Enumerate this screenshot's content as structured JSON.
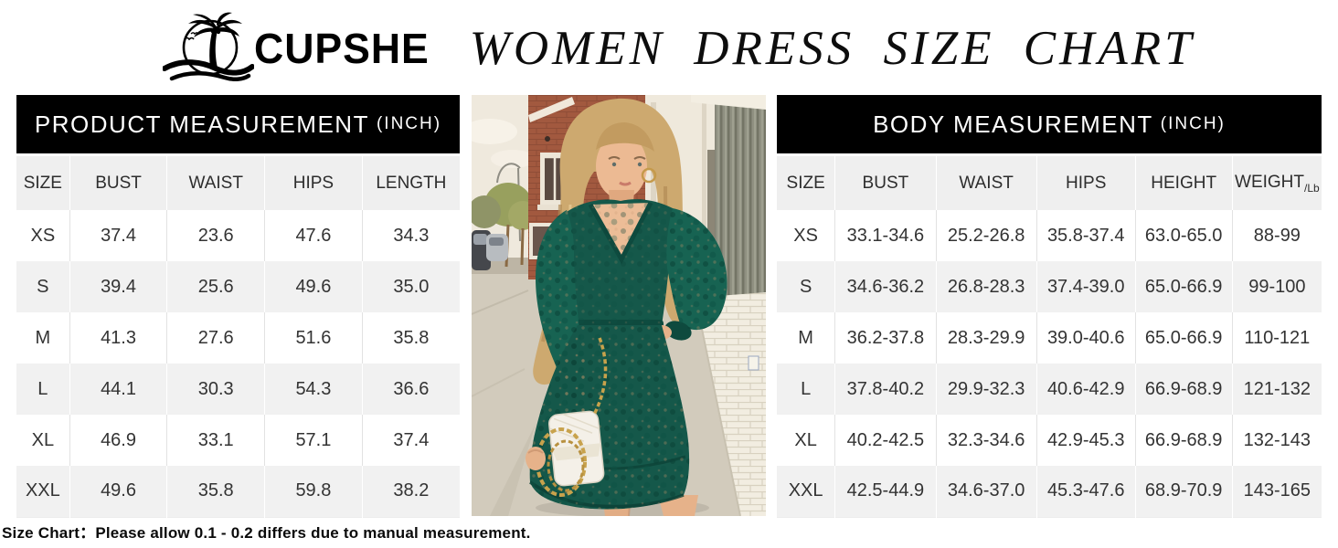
{
  "header": {
    "brand": "CUPSHE",
    "title": "WOMEN DRESS SIZE CHART"
  },
  "product_table": {
    "title": "PRODUCT MEASUREMENT",
    "unit": "(INCH)",
    "columns": [
      "SIZE",
      "BUST",
      "WAIST",
      "HIPS",
      "LENGTH"
    ],
    "rows": [
      [
        "XS",
        "37.4",
        "23.6",
        "47.6",
        "34.3"
      ],
      [
        "S",
        "39.4",
        "25.6",
        "49.6",
        "35.0"
      ],
      [
        "M",
        "41.3",
        "27.6",
        "51.6",
        "35.8"
      ],
      [
        "L",
        "44.1",
        "30.3",
        "54.3",
        "36.6"
      ],
      [
        "XL",
        "46.9",
        "33.1",
        "57.1",
        "37.4"
      ],
      [
        "XXL",
        "49.6",
        "35.8",
        "59.8",
        "38.2"
      ]
    ]
  },
  "body_table": {
    "title": "BODY MEASUREMENT",
    "unit": "(INCH)",
    "columns": [
      "SIZE",
      "BUST",
      "WAIST",
      "HIPS",
      "HEIGHT",
      "WEIGHT"
    ],
    "weight_unit": "/Lb",
    "rows": [
      [
        "XS",
        "33.1-34.6",
        "25.2-26.8",
        "35.8-37.4",
        "63.0-65.0",
        "88-99"
      ],
      [
        "S",
        "34.6-36.2",
        "26.8-28.3",
        "37.4-39.0",
        "65.0-66.9",
        "99-100"
      ],
      [
        "M",
        "36.2-37.8",
        "28.3-29.9",
        "39.0-40.6",
        "65.0-66.9",
        "110-121"
      ],
      [
        "L",
        "37.8-40.2",
        "29.9-32.3",
        "40.6-42.9",
        "66.9-68.9",
        "121-132"
      ],
      [
        "XL",
        "40.2-42.5",
        "32.3-34.6",
        "42.9-45.3",
        "66.9-68.9",
        "132-143"
      ],
      [
        "XXL",
        "42.5-44.9",
        "34.6-37.0",
        "45.3-47.6",
        "68.9-70.9",
        "143-165"
      ]
    ]
  },
  "footnote": "Size Chart：Please allow 0.1 - 0.2 differs due to manual measurement.",
  "colors": {
    "bar_black": "#000000",
    "row_stripe": "#f1f1f1",
    "header_row": "#efefef",
    "cell_border": "#e2e2e2",
    "dress_green": "#15584a",
    "chain_gold": "#c8a24c",
    "brick_red": "#a2593f",
    "hair_blonde": "#cda96f"
  }
}
